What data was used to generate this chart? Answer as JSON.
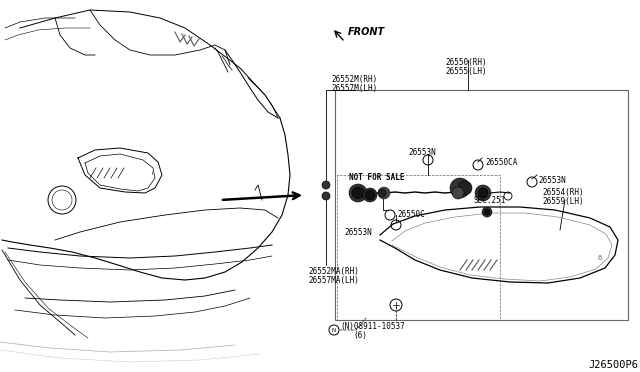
{
  "bg_color": "#ffffff",
  "diagram_id": "J26500P6",
  "front_label": "FRONT",
  "not_for_sale": "NOT FOR SALE",
  "sec_label": "SEC.251",
  "text_color": "#000000",
  "line_color": "#000000",
  "gray_color": "#888888",
  "label_26552M": [
    "26552M(RH)",
    "26557M(LH)"
  ],
  "label_26550": [
    "26550(RH)",
    "26555(LH)"
  ],
  "label_26553N_top": "26553N",
  "label_26550CA": "26550CA",
  "label_26553N_right": "26553N",
  "label_26554": [
    "26554(RH)",
    "26559(LH)"
  ],
  "label_26550C": "26550C",
  "label_26553N_bot": "26553N",
  "label_26552MA": [
    "26552MA(RH)",
    "26557MA(LH)"
  ],
  "label_bolt": [
    "(N)08911-10537",
    "(6)"
  ],
  "fontsize_label": 5.5,
  "fontsize_id": 7.5
}
